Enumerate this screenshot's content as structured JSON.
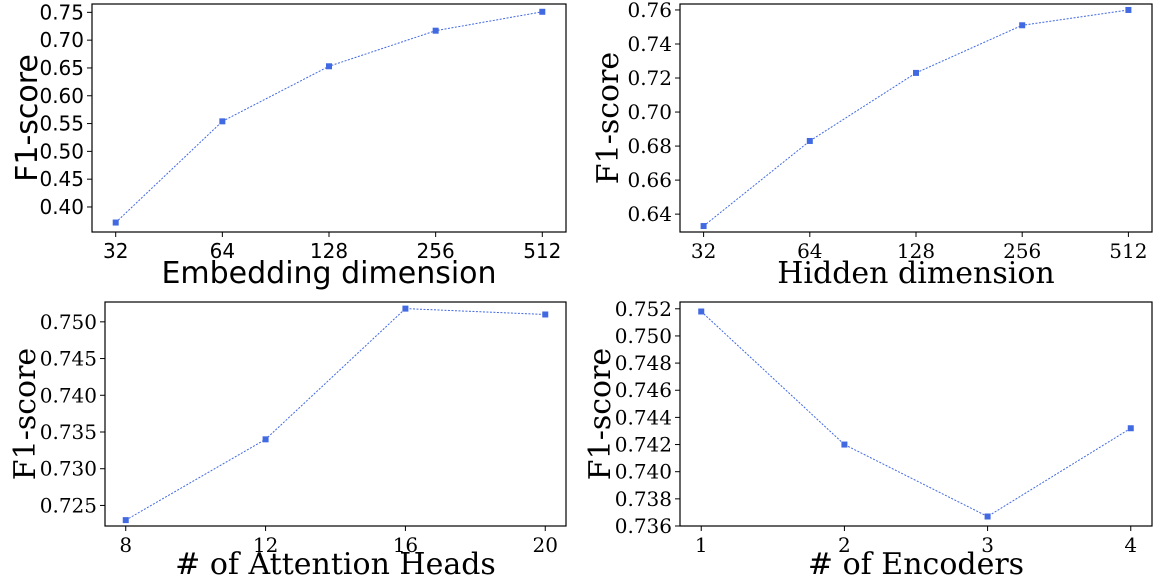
{
  "colors": {
    "series": "#4169e1",
    "axis": "#000000"
  },
  "chart_data": [
    {
      "type": "line",
      "categories": [
        "32",
        "64",
        "128",
        "256",
        "512"
      ],
      "values": [
        0.372,
        0.554,
        0.653,
        0.717,
        0.751
      ],
      "xlabel": "Embedding dimension",
      "ylabel": "F1-score",
      "ylim": [
        0.355,
        0.765
      ],
      "yticks": [
        0.4,
        0.45,
        0.5,
        0.55,
        0.6,
        0.65,
        0.7,
        0.75
      ],
      "ytick_labels": [
        "0.40",
        "0.45",
        "0.50",
        "0.55",
        "0.60",
        "0.65",
        "0.70",
        "0.75"
      ],
      "grid": false,
      "marker": "square",
      "linestyle": "dotted"
    },
    {
      "type": "line",
      "categories": [
        "32",
        "64",
        "128",
        "256",
        "512"
      ],
      "values": [
        0.633,
        0.683,
        0.723,
        0.751,
        0.76
      ],
      "xlabel": "Hidden dimension",
      "ylabel": "F1-score",
      "ylim": [
        0.6295,
        0.7635
      ],
      "yticks": [
        0.64,
        0.66,
        0.68,
        0.7,
        0.72,
        0.74,
        0.76
      ],
      "ytick_labels": [
        "0.64",
        "0.66",
        "0.68",
        "0.70",
        "0.72",
        "0.74",
        "0.76"
      ],
      "grid": false,
      "marker": "square",
      "linestyle": "dotted"
    },
    {
      "type": "line",
      "categories": [
        "8",
        "12",
        "16",
        "20"
      ],
      "values": [
        0.723,
        0.734,
        0.7518,
        0.751
      ],
      "xlabel": "# of Attention Heads",
      "ylabel": "F1-score",
      "ylim": [
        0.7222,
        0.7527
      ],
      "yticks": [
        0.725,
        0.73,
        0.735,
        0.74,
        0.745,
        0.75
      ],
      "ytick_labels": [
        "0.725",
        "0.730",
        "0.735",
        "0.740",
        "0.745",
        "0.750"
      ],
      "grid": false,
      "marker": "square",
      "linestyle": "dotted"
    },
    {
      "type": "line",
      "categories": [
        "1",
        "2",
        "3",
        "4"
      ],
      "values": [
        0.7518,
        0.742,
        0.7367,
        0.7432
      ],
      "xlabel": "# of Encoders",
      "ylabel": "F1-score",
      "ylim": [
        0.736,
        0.7525
      ],
      "yticks": [
        0.736,
        0.738,
        0.74,
        0.742,
        0.744,
        0.746,
        0.748,
        0.75,
        0.752
      ],
      "ytick_labels": [
        "0.736",
        "0.738",
        "0.740",
        "0.742",
        "0.744",
        "0.746",
        "0.748",
        "0.750",
        "0.752"
      ],
      "grid": false,
      "marker": "square",
      "linestyle": "dotted"
    }
  ]
}
